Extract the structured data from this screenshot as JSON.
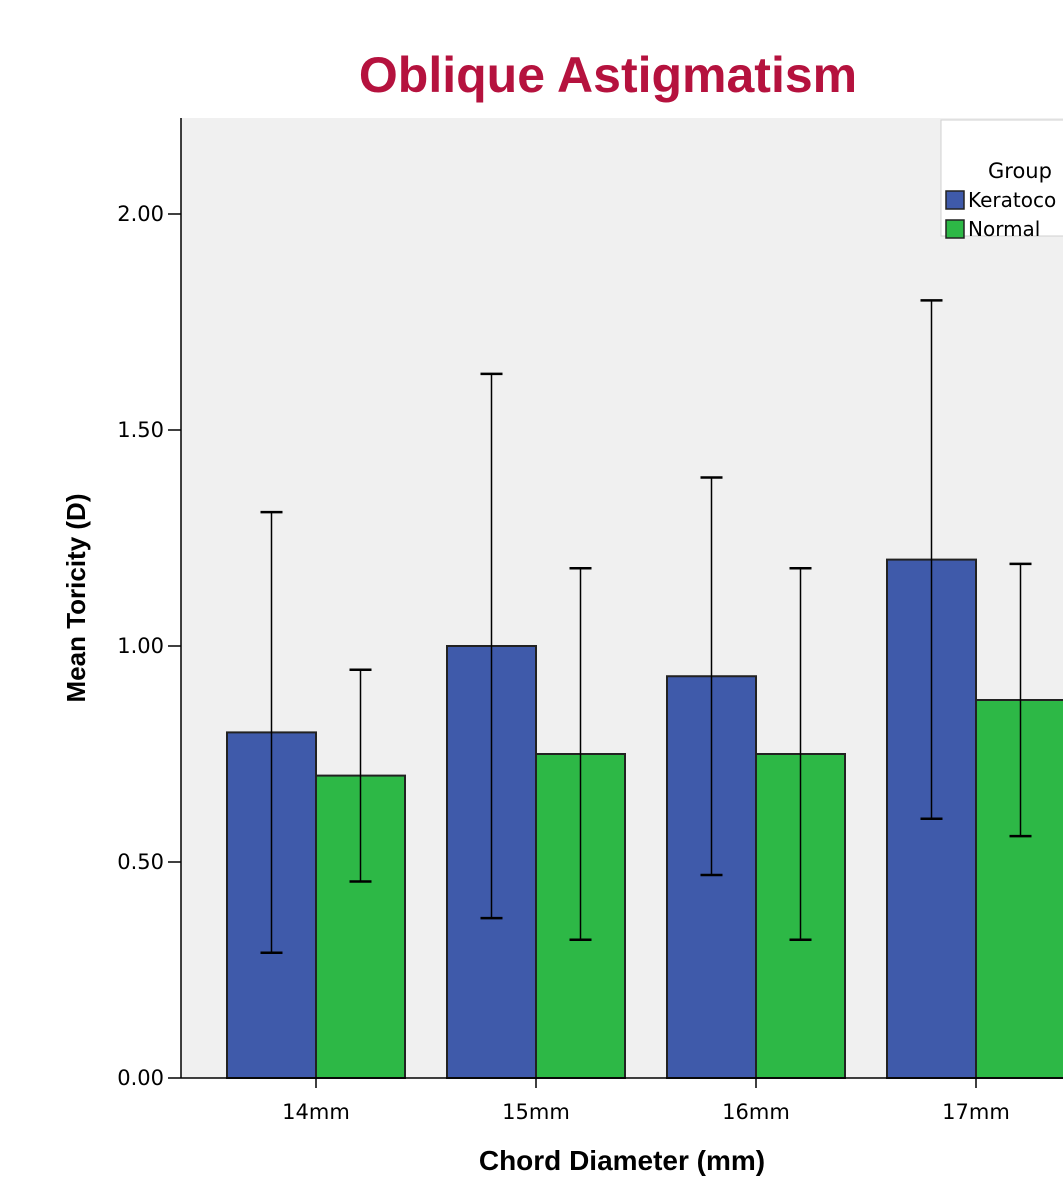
{
  "chart_data": {
    "type": "bar",
    "title": "Oblique Astigmatism",
    "xlabel": "Chord Diameter (mm)",
    "ylabel": "Mean Toricity (D)",
    "ylim": [
      0,
      2.2
    ],
    "yticks": [
      "0.00",
      "0.50",
      "1.00",
      "1.50",
      "2.00"
    ],
    "categories": [
      "14mm",
      "15mm",
      "16mm",
      "17mm"
    ],
    "grid": false,
    "legend_title": "Group",
    "legend_position": "top-right",
    "series": [
      {
        "name": "Keratoco",
        "color": "#3f5aaa",
        "values": [
          0.8,
          1.0,
          0.93,
          1.2
        ],
        "err_low": [
          0.29,
          0.37,
          0.47,
          0.6
        ],
        "err_high": [
          1.31,
          1.63,
          1.39,
          1.8
        ]
      },
      {
        "name": "Normal",
        "color": "#2db846",
        "values": [
          0.7,
          0.75,
          0.75,
          0.875
        ],
        "err_low": [
          0.455,
          0.32,
          0.32,
          0.56
        ],
        "err_high": [
          0.945,
          1.18,
          1.18,
          1.19
        ]
      }
    ],
    "colors": {
      "title": "#b5123e",
      "plot_background": "#f0f0f0"
    }
  }
}
